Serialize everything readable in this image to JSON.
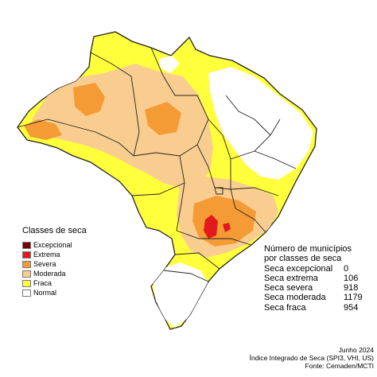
{
  "legend": {
    "title": "Classes de seca",
    "items": [
      {
        "label": "Excepcional",
        "color": "#7a0000"
      },
      {
        "label": "Extrema",
        "color": "#e31a1c"
      },
      {
        "label": "Severa",
        "color": "#f59b35"
      },
      {
        "label": "Moderada",
        "color": "#f9cd8f"
      },
      {
        "label": "Fraca",
        "color": "#ffff3c"
      },
      {
        "label": "Normal",
        "color": "#ffffff"
      }
    ]
  },
  "stats": {
    "title_line1": "Número de municípios",
    "title_line2": "por classes de seca",
    "rows": [
      {
        "label": "Seca excepcional",
        "count": "0"
      },
      {
        "label": "Seca extrema",
        "count": "106"
      },
      {
        "label": "Seca severa",
        "count": "918"
      },
      {
        "label": "Seca moderada",
        "count": "1179"
      },
      {
        "label": "Seca fraca",
        "count": "954"
      }
    ]
  },
  "footer": {
    "date": "Junho 2024",
    "index": "Índice Integrado de Seca (SPI3, VHI, US)",
    "source": "Fonte: Cemaden/MCTI"
  }
}
